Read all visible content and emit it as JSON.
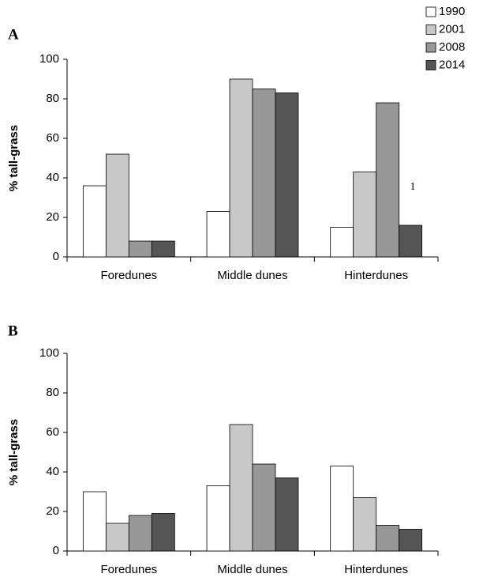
{
  "chart_data": [
    {
      "type": "bar",
      "panel": "A",
      "ylabel": "% tall-grass",
      "annotation": "1",
      "categories": [
        "Foredunes",
        "Middle dunes",
        "Hinterdunes"
      ],
      "series": [
        {
          "name": "1990",
          "color": "#ffffff",
          "values": [
            36,
            23,
            15
          ]
        },
        {
          "name": "2001",
          "color": "#c8c8c8",
          "values": [
            52,
            90,
            43
          ]
        },
        {
          "name": "2008",
          "color": "#979797",
          "values": [
            8,
            85,
            78
          ]
        },
        {
          "name": "2014",
          "color": "#555555",
          "values": [
            8,
            83,
            16
          ]
        }
      ],
      "ylim": [
        0,
        100
      ],
      "yticks": [
        0,
        20,
        40,
        60,
        80,
        100
      ],
      "legend": "top-right"
    },
    {
      "type": "bar",
      "panel": "B",
      "ylabel": "% tall-grass",
      "categories": [
        "Foredunes",
        "Middle dunes",
        "Hinterdunes"
      ],
      "series": [
        {
          "name": "1990",
          "color": "#ffffff",
          "values": [
            30,
            33,
            43
          ]
        },
        {
          "name": "2001",
          "color": "#c8c8c8",
          "values": [
            14,
            64,
            27
          ]
        },
        {
          "name": "2008",
          "color": "#979797",
          "values": [
            18,
            44,
            13
          ]
        },
        {
          "name": "2014",
          "color": "#555555",
          "values": [
            19,
            37,
            11
          ]
        }
      ],
      "ylim": [
        0,
        100
      ],
      "yticks": [
        0,
        20,
        40,
        60,
        80,
        100
      ]
    }
  ]
}
